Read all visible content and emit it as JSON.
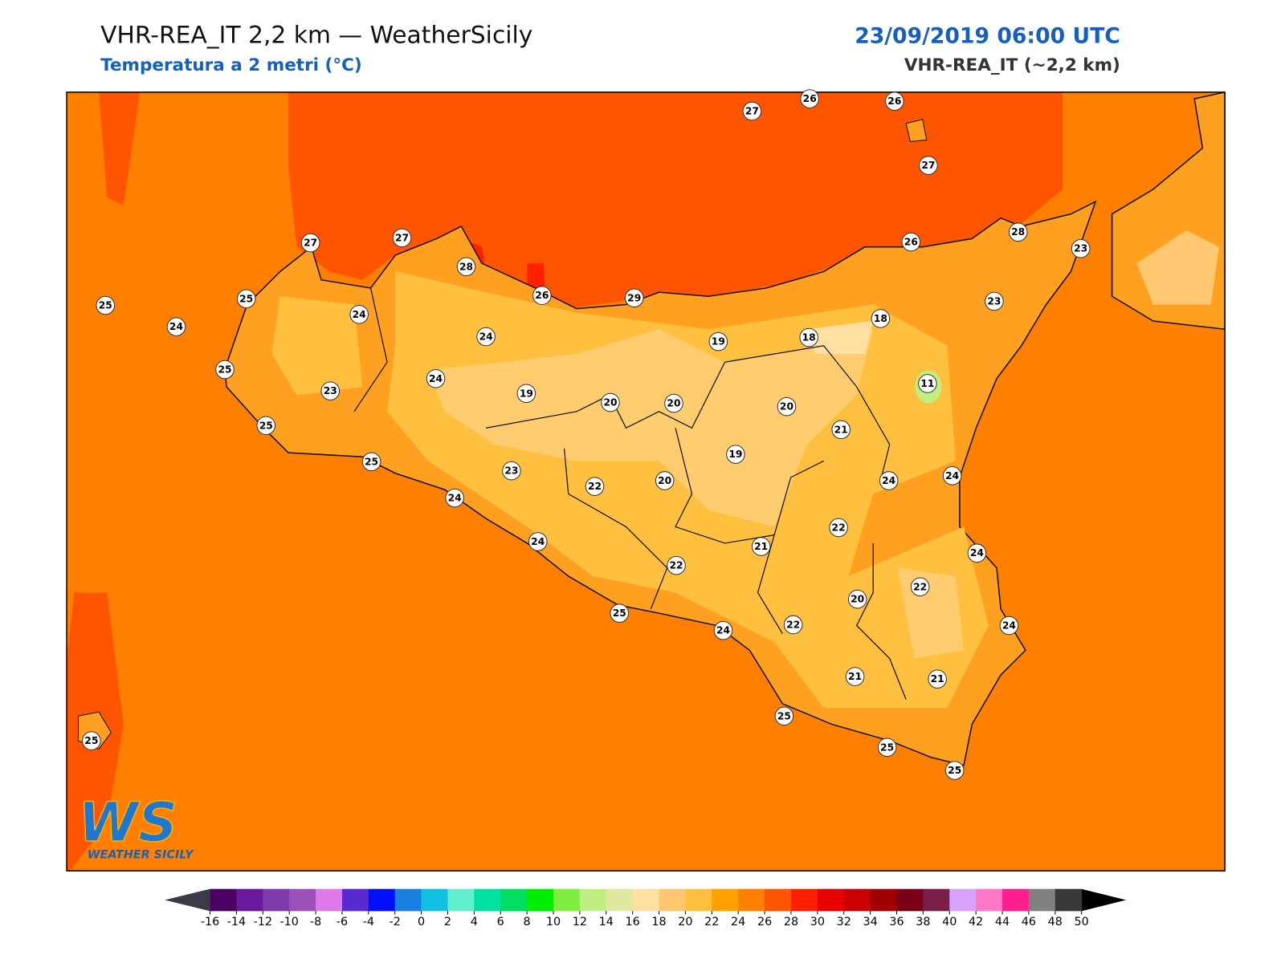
{
  "header": {
    "title": "VHR-REA_IT 2,2 km — WeatherSicily",
    "subtitle": "Temperatura a 2 metri (°C)",
    "datetime": "23/09/2019 06:00 UTC",
    "model": "VHR-REA_IT (~2,2 km)"
  },
  "stations": [
    27,
    26,
    26,
    27,
    27,
    27,
    28,
    26,
    29,
    26,
    28,
    23,
    25,
    24,
    25,
    24,
    24,
    19,
    18,
    18,
    23,
    25,
    23,
    24,
    19,
    20,
    20,
    20,
    11,
    21,
    25,
    25,
    23,
    22,
    20,
    19,
    24,
    24,
    24,
    22,
    21,
    24,
    22,
    24,
    22,
    20,
    22,
    24,
    25,
    24,
    21,
    21,
    25,
    25,
    25,
    25
  ],
  "logo": {
    "mark": "WS",
    "text": "WEATHER SICILY"
  },
  "colorbar": {
    "ticks": [
      -16,
      -14,
      -12,
      -10,
      -8,
      -6,
      -4,
      -2,
      0,
      2,
      4,
      6,
      8,
      10,
      12,
      14,
      16,
      18,
      20,
      22,
      24,
      26,
      28,
      30,
      32,
      34,
      36,
      38,
      40,
      42,
      44,
      46,
      48,
      50
    ],
    "colors": [
      "#4a0060",
      "#6a1a9a",
      "#7e3aa8",
      "#9a50b8",
      "#e07ae8",
      "#5a2ad0",
      "#0010ff",
      "#1a80e0",
      "#10c0e0",
      "#60f0d0",
      "#00e0a0",
      "#00dd60",
      "#00ee00",
      "#80ee40",
      "#c0ee80",
      "#e0e8a0",
      "#ffe0a0",
      "#ffc870",
      "#ffc040",
      "#ff9f00",
      "#ff8000",
      "#ff5500",
      "#ff2000",
      "#e80000",
      "#c80000",
      "#a00000",
      "#7a0018",
      "#7a2048",
      "#d8a0ff",
      "#ff78c8",
      "#ff2090",
      "#808080",
      "#383838"
    ],
    "under_color": "#3a3a48",
    "over_color": "#000000"
  }
}
